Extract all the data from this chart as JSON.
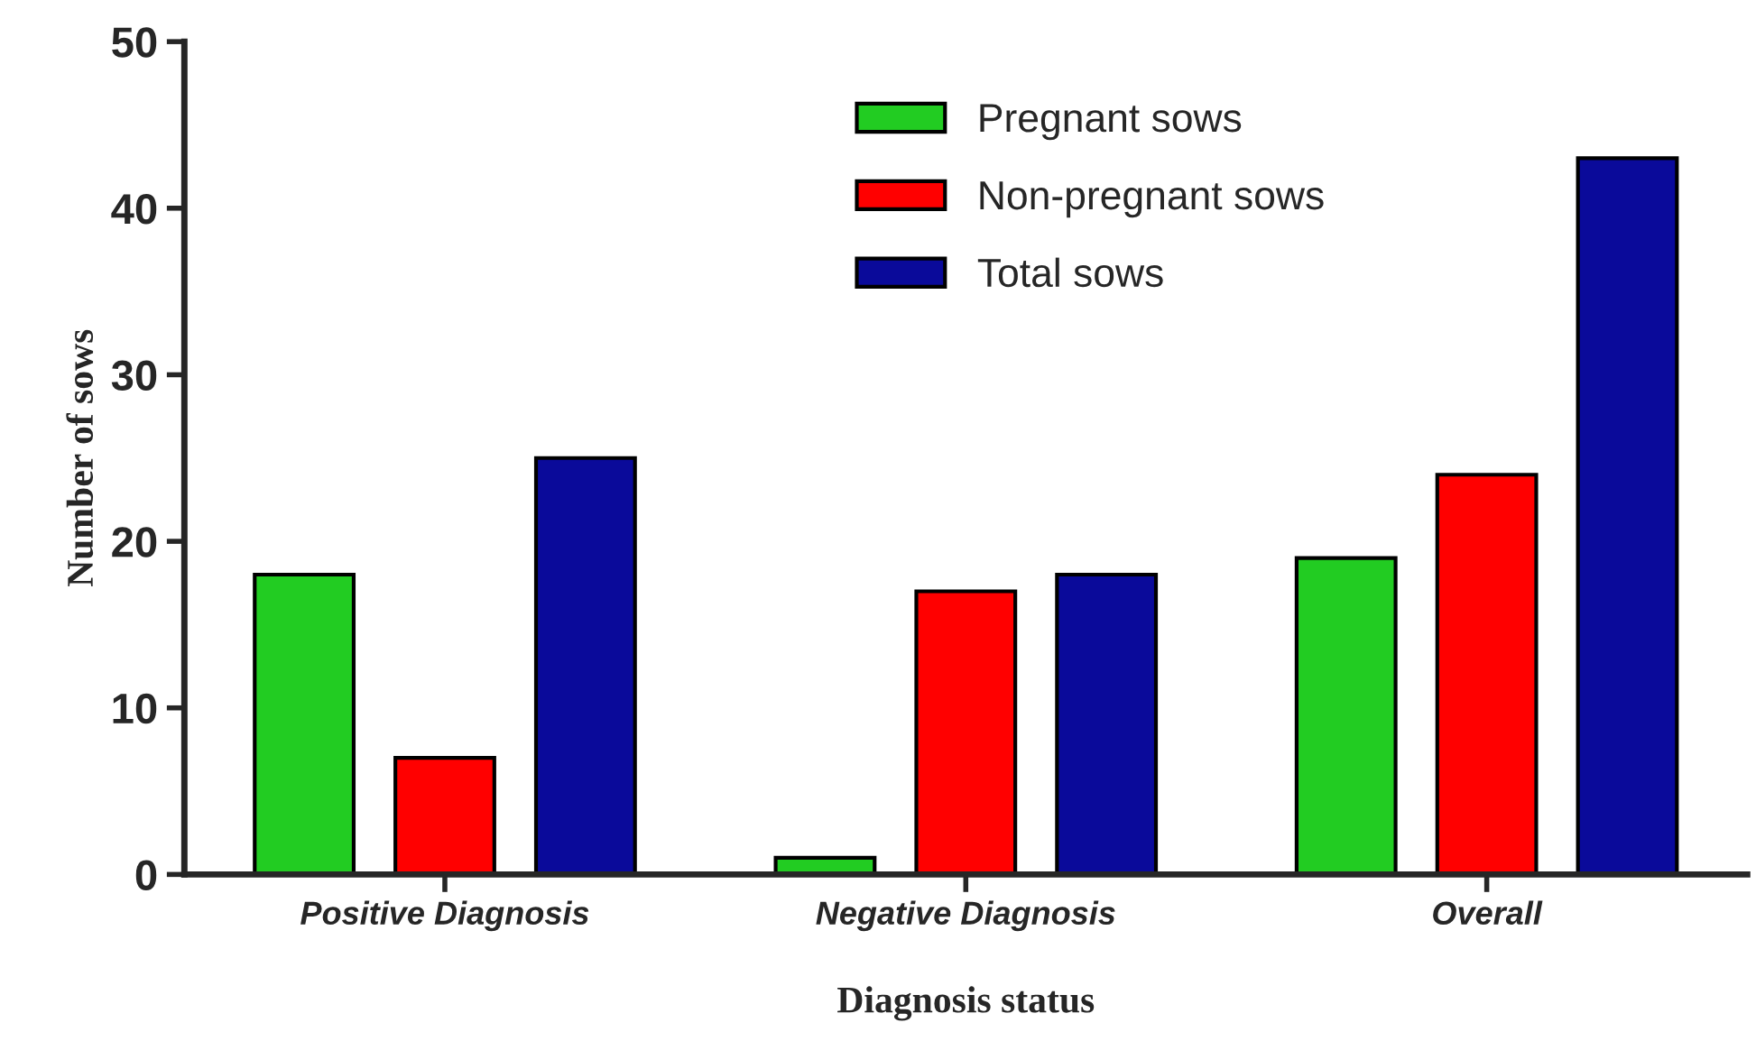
{
  "chart_data": {
    "type": "bar",
    "xlabel": "Diagnosis status",
    "ylabel": "Number of sows",
    "categories": [
      "Positive Diagnosis",
      "Negative Diagnosis",
      "Overall"
    ],
    "series": [
      {
        "name": "Pregnant sows",
        "color": "#22cc22",
        "values": [
          18,
          1,
          19
        ]
      },
      {
        "name": "Non-pregnant sows",
        "color": "#ff0000",
        "values": [
          7,
          17,
          24
        ]
      },
      {
        "name": "Total sows",
        "color": "#0a0a9a",
        "values": [
          25,
          18,
          43
        ]
      }
    ],
    "ylim": [
      0,
      50
    ],
    "yticks": [
      0,
      10,
      20,
      30,
      40,
      50
    ],
    "grid": false,
    "legend": "top"
  }
}
